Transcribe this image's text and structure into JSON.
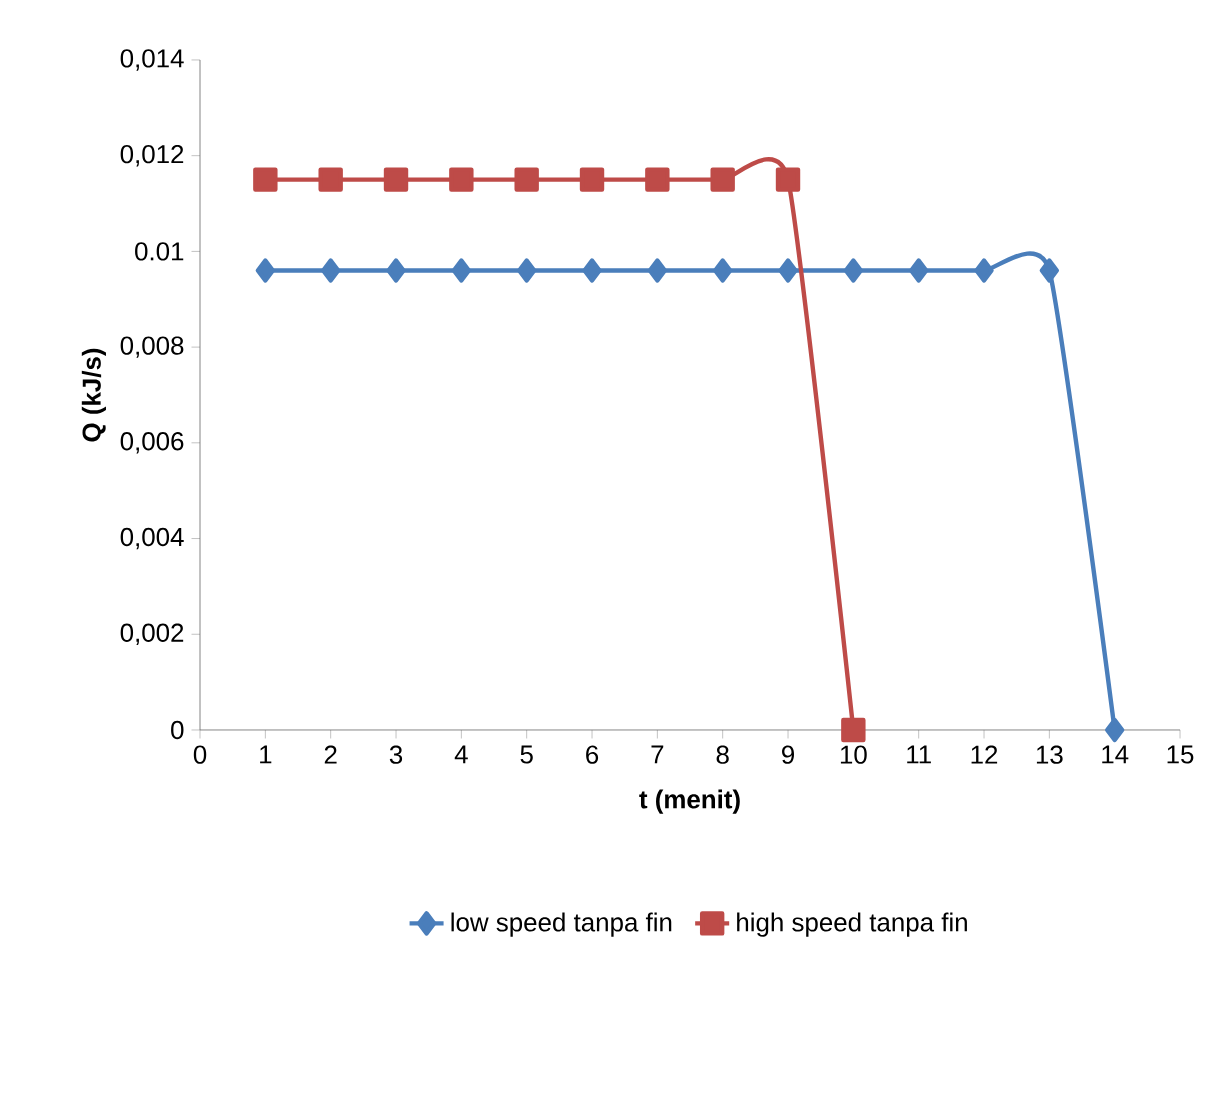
{
  "chart_data": {
    "type": "line",
    "xlabel": "t (menit)",
    "ylabel": "Q (kJ/s)",
    "xlim": [
      0,
      15
    ],
    "xticks": [
      0,
      1,
      2,
      3,
      4,
      5,
      6,
      7,
      8,
      9,
      10,
      11,
      12,
      13,
      14,
      15
    ],
    "ylim": [
      0,
      0.014
    ],
    "yticks": [
      0,
      {
        "value": 0.002,
        "label": "0,002"
      },
      {
        "value": 0.004,
        "label": "0,004"
      },
      {
        "value": 0.006,
        "label": "0,006"
      },
      {
        "value": 0.008,
        "label": "0,008"
      },
      {
        "value": 0.01,
        "label": "0.01"
      },
      {
        "value": 0.012,
        "label": "0,012"
      },
      {
        "value": 0.014,
        "label": "0,014"
      }
    ],
    "grid": false,
    "legend": "bottom",
    "series": [
      {
        "name": "low speed tanpa fin",
        "color": "#4a7ebb",
        "marker": "diamond",
        "x": [
          1,
          2,
          3,
          4,
          5,
          6,
          7,
          8,
          9,
          10,
          11,
          12,
          13,
          14
        ],
        "values": [
          0.0096,
          0.0096,
          0.0096,
          0.0096,
          0.0096,
          0.0096,
          0.0096,
          0.0096,
          0.0096,
          0.0096,
          0.0096,
          0.0096,
          0.0096,
          0
        ]
      },
      {
        "name": "high speed tanpa fin",
        "color": "#be4b48",
        "marker": "square",
        "x": [
          1,
          2,
          3,
          4,
          5,
          6,
          7,
          8,
          9,
          10
        ],
        "values": [
          0.0115,
          0.0115,
          0.0115,
          0.0115,
          0.0115,
          0.0115,
          0.0115,
          0.0115,
          0.0115,
          0
        ]
      }
    ]
  }
}
